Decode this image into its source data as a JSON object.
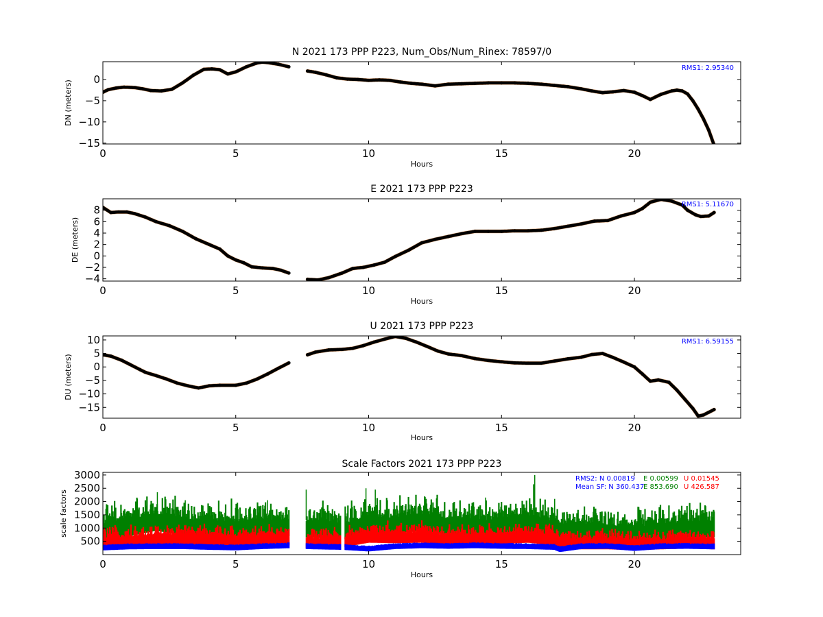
{
  "figure": {
    "background": "#ffffff"
  },
  "chart_data": [
    {
      "type": "scatter",
      "title": "N 2021 173 PPP  P223, Num_Obs/Num_Rinex: 78597/0",
      "xlabel": "Hours",
      "ylabel": "DN (meters)",
      "xlim": [
        0,
        24
      ],
      "ylim": [
        -15.2,
        4.2
      ],
      "xticks": [
        "0",
        "5",
        "10",
        "15",
        "20"
      ],
      "xtick_values": [
        0,
        5,
        10,
        15,
        20
      ],
      "yticks": [
        "0",
        "−5",
        "−10",
        "−15"
      ],
      "ytick_values": [
        0,
        -5,
        -10,
        -15
      ],
      "annotation": {
        "text": "RMS1:  2.95340",
        "color": "#0000ff"
      },
      "point_color": "#000000",
      "edge_color": "#c8691e",
      "gaps": [
        [
          7.0,
          7.7
        ]
      ],
      "series": [
        {
          "x": [
            0,
            0.2,
            0.5,
            0.8,
            1.2,
            1.5,
            1.8,
            2.2,
            2.6,
            3.0,
            3.4,
            3.8,
            4.1,
            4.4,
            4.7,
            5.0,
            5.4,
            5.8,
            6.0,
            6.2,
            6.6,
            7.0,
            7.7,
            8.0,
            8.4,
            8.8,
            9.2,
            9.6,
            10.0,
            10.4,
            10.8,
            11.2,
            11.6,
            12.0,
            12.5,
            13.0,
            13.5,
            14.0,
            14.5,
            15.0,
            15.5,
            16.0,
            16.5,
            17.0,
            17.5,
            18.0,
            18.4,
            18.8,
            19.2,
            19.6,
            20.0,
            20.3,
            20.6,
            21.0,
            21.4,
            21.6,
            21.8,
            22.0,
            22.2,
            22.4,
            22.6,
            22.8,
            23.0
          ],
          "y": [
            -3.0,
            -2.4,
            -2.0,
            -1.8,
            -1.9,
            -2.2,
            -2.6,
            -2.7,
            -2.3,
            -0.8,
            1.0,
            2.4,
            2.5,
            2.3,
            1.3,
            1.8,
            3.0,
            3.9,
            4.1,
            4.0,
            3.6,
            3.0,
            2.0,
            1.7,
            1.1,
            0.4,
            0.1,
            0.0,
            -0.2,
            -0.1,
            -0.2,
            -0.6,
            -0.9,
            -1.1,
            -1.5,
            -1.1,
            -1.0,
            -0.9,
            -0.8,
            -0.8,
            -0.8,
            -0.9,
            -1.1,
            -1.4,
            -1.7,
            -2.2,
            -2.7,
            -3.1,
            -2.9,
            -2.6,
            -3.0,
            -3.8,
            -4.7,
            -3.5,
            -2.7,
            -2.5,
            -2.7,
            -3.4,
            -5.0,
            -7.0,
            -9.3,
            -12.0,
            -15.5
          ]
        }
      ]
    },
    {
      "type": "scatter",
      "title": "E 2021 173 PPP  P223",
      "xlabel": "Hours",
      "ylabel": "DE (meters)",
      "xlim": [
        0,
        24
      ],
      "ylim": [
        -4.4,
        10.0
      ],
      "xticks": [
        "0",
        "5",
        "10",
        "15",
        "20"
      ],
      "xtick_values": [
        0,
        5,
        10,
        15,
        20
      ],
      "yticks": [
        "8",
        "6",
        "4",
        "2",
        "0",
        "−2",
        "−4"
      ],
      "ytick_values": [
        8,
        6,
        4,
        2,
        0,
        -2,
        -4
      ],
      "annotation": {
        "text": "RMS1:  5.11670",
        "color": "#0000ff"
      },
      "point_color": "#000000",
      "edge_color": "#c8691e",
      "gaps": [
        [
          7.0,
          7.7
        ]
      ],
      "series": [
        {
          "x": [
            0,
            0.3,
            0.6,
            0.9,
            1.2,
            1.6,
            2.0,
            2.5,
            3.0,
            3.5,
            4.0,
            4.4,
            4.7,
            5.0,
            5.3,
            5.6,
            6.0,
            6.4,
            6.7,
            7.0,
            7.7,
            8.1,
            8.5,
            9.0,
            9.4,
            9.8,
            10.2,
            10.6,
            11.0,
            11.5,
            12.0,
            12.5,
            13.0,
            13.5,
            14.0,
            14.5,
            15.0,
            15.5,
            16.0,
            16.5,
            17.0,
            17.5,
            18.0,
            18.5,
            19.0,
            19.5,
            20.0,
            20.3,
            20.6,
            21.0,
            21.4,
            21.8,
            22.0,
            22.3,
            22.5,
            22.8,
            23.0
          ],
          "y": [
            8.5,
            7.6,
            7.7,
            7.7,
            7.4,
            6.8,
            6.0,
            5.3,
            4.3,
            3.0,
            2.0,
            1.2,
            0.0,
            -0.7,
            -1.2,
            -1.9,
            -2.1,
            -2.2,
            -2.5,
            -3.0,
            -4.1,
            -4.2,
            -3.8,
            -3.0,
            -2.2,
            -2.0,
            -1.6,
            -1.1,
            -0.1,
            1.0,
            2.3,
            2.9,
            3.4,
            3.9,
            4.3,
            4.3,
            4.3,
            4.4,
            4.4,
            4.5,
            4.8,
            5.2,
            5.6,
            6.1,
            6.2,
            7.0,
            7.6,
            8.3,
            9.4,
            9.9,
            9.6,
            8.9,
            8.0,
            7.2,
            6.9,
            7.0,
            7.6
          ]
        }
      ]
    },
    {
      "type": "scatter",
      "title": "U 2021 173 PPP  P223",
      "xlabel": "Hours",
      "ylabel": "DU (meters)",
      "xlim": [
        0,
        24
      ],
      "ylim": [
        -19.0,
        11.5
      ],
      "xticks": [
        "0",
        "5",
        "10",
        "15",
        "20"
      ],
      "xtick_values": [
        0,
        5,
        10,
        15,
        20
      ],
      "yticks": [
        "10",
        "5",
        "0",
        "−5",
        "−10",
        "−15"
      ],
      "ytick_values": [
        10,
        5,
        0,
        -5,
        -10,
        -15
      ],
      "annotation": {
        "text": "RMS1:  6.59155",
        "color": "#0000ff"
      },
      "point_color": "#000000",
      "edge_color": "#c8691e",
      "gaps": [
        [
          7.0,
          7.7
        ]
      ],
      "series": [
        {
          "x": [
            0,
            0.3,
            0.7,
            1.0,
            1.4,
            1.6,
            2.0,
            2.4,
            2.8,
            3.2,
            3.6,
            4.0,
            4.4,
            5.0,
            5.4,
            5.8,
            6.2,
            6.6,
            7.0,
            7.7,
            8.0,
            8.5,
            9.0,
            9.4,
            9.8,
            10.2,
            10.6,
            11.0,
            11.4,
            11.8,
            12.2,
            12.6,
            13.0,
            13.5,
            14.0,
            14.5,
            15.0,
            15.5,
            16.0,
            16.5,
            17.0,
            17.5,
            18.0,
            18.4,
            18.8,
            19.2,
            19.6,
            20.0,
            20.3,
            20.6,
            20.9,
            21.3,
            21.6,
            21.9,
            22.2,
            22.4,
            22.6,
            22.8,
            23.0
          ],
          "y": [
            4.5,
            4.0,
            2.5,
            1.0,
            -1.0,
            -2.0,
            -3.2,
            -4.5,
            -6.0,
            -7.0,
            -7.8,
            -7.0,
            -6.8,
            -6.8,
            -6.0,
            -4.5,
            -2.6,
            -0.5,
            1.5,
            4.5,
            5.5,
            6.3,
            6.5,
            6.9,
            7.9,
            9.2,
            10.3,
            11.3,
            10.6,
            9.2,
            7.6,
            5.9,
            4.8,
            4.2,
            3.1,
            2.4,
            1.9,
            1.5,
            1.4,
            1.4,
            2.2,
            3.0,
            3.6,
            4.6,
            5.0,
            3.5,
            1.8,
            0.0,
            -2.6,
            -5.3,
            -4.8,
            -5.7,
            -8.6,
            -12.0,
            -15.4,
            -18.2,
            -17.8,
            -16.8,
            -15.8
          ]
        }
      ]
    },
    {
      "type": "scatter",
      "title": "Scale Factors 2021 173 PPP  P223",
      "xlabel": "Hours",
      "ylabel": "scale factors",
      "xlim": [
        0,
        24
      ],
      "ylim": [
        0,
        3100
      ],
      "xticks": [
        "0",
        "5",
        "10",
        "15",
        "20"
      ],
      "xtick_values": [
        0,
        5,
        10,
        15,
        20
      ],
      "yticks": [
        "3000",
        "2500",
        "2000",
        "1500",
        "1000",
        "500"
      ],
      "ytick_values": [
        3000,
        2500,
        2000,
        1500,
        1000,
        500
      ],
      "annotations": {
        "rms_label": "RMS2: N  0.00819",
        "rms_e": "E  0.00599",
        "rms_u": "U  0.01545",
        "mean_label": "Mean SF: N 360.437",
        "mean_e": "E 853.690",
        "mean_u": "U 426.587"
      },
      "gaps": [
        [
          7.0,
          7.65
        ]
      ],
      "series": [
        {
          "name": "N",
          "color": "#0000ff",
          "x": [
            0,
            1,
            2,
            3,
            4,
            5,
            6,
            7,
            7.7,
            8,
            9,
            10,
            11,
            12,
            13,
            14,
            15,
            16,
            17,
            17.2,
            18,
            19,
            20,
            21,
            22,
            23
          ],
          "y": [
            280,
            320,
            330,
            330,
            300,
            280,
            330,
            360,
            330,
            320,
            300,
            240,
            330,
            360,
            340,
            360,
            340,
            330,
            300,
            220,
            330,
            340,
            260,
            330,
            340,
            320
          ]
        },
        {
          "name": "E",
          "color": "#008000",
          "x": [
            0,
            1,
            2,
            3,
            4,
            5,
            6,
            7,
            7.7,
            8,
            9,
            10,
            11,
            12,
            13,
            14,
            15,
            16,
            17,
            17.2,
            18,
            19,
            20,
            21,
            22,
            23
          ],
          "y": [
            900,
            1050,
            1250,
            1100,
            950,
            1000,
            1050,
            1050,
            1000,
            1000,
            900,
            1150,
            1150,
            1250,
            1100,
            1000,
            1100,
            1200,
            1000,
            900,
            900,
            800,
            800,
            850,
            1000,
            1000
          ]
        },
        {
          "name": "U",
          "color": "#ff0000",
          "x": [
            0,
            1,
            2,
            3,
            4,
            5,
            6,
            7,
            7.7,
            8,
            9,
            10,
            11,
            12,
            13,
            14,
            15,
            16,
            17,
            17.2,
            18,
            19,
            20,
            21,
            22,
            23
          ],
          "y": [
            500,
            550,
            600,
            650,
            600,
            550,
            600,
            600,
            480,
            470,
            520,
            700,
            680,
            700,
            600,
            600,
            650,
            700,
            600,
            480,
            450,
            450,
            420,
            450,
            480,
            450
          ]
        }
      ]
    }
  ]
}
